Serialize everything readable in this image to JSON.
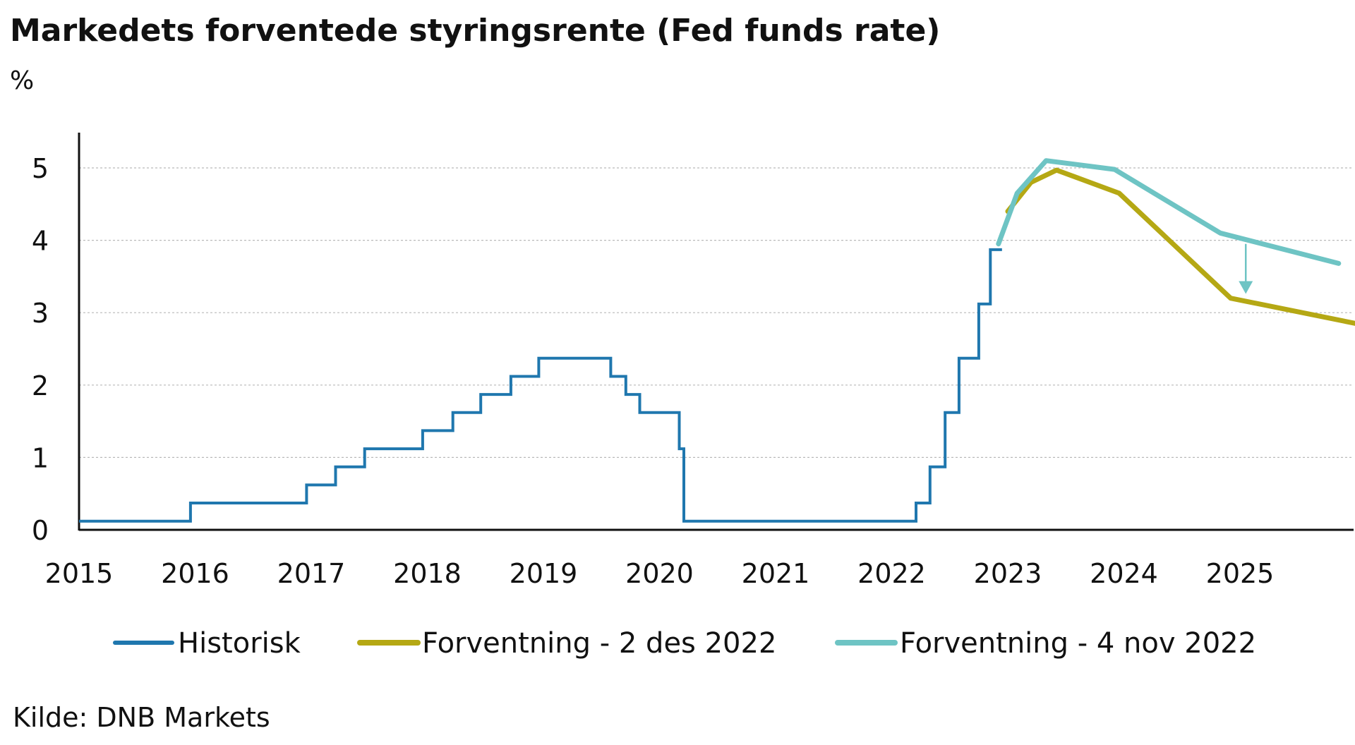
{
  "title": "Markedets forventede styringsrente (Fed funds rate)",
  "unit_label": "%",
  "source": "Kilde: DNB Markets",
  "colors": {
    "historisk": "#1f77ae",
    "forventning_des": "#b5a814",
    "forventning_nov": "#6ec4c4",
    "arrow": "#6ec4c4",
    "grid": "#b9b9b9",
    "axis": "#111111"
  },
  "chart_data": {
    "type": "line",
    "title": "Markedets forventede styringsrente (Fed funds rate)",
    "xlabel": "",
    "ylabel": "%",
    "xlim": [
      2015,
      2026
    ],
    "ylim": [
      0,
      5.5
    ],
    "grid": "horizontal dashed",
    "legend_position": "bottom",
    "x_ticks": [
      "2015",
      "2016",
      "2017",
      "2018",
      "2019",
      "2020",
      "2021",
      "2022",
      "2023",
      "2024",
      "2025"
    ],
    "y_ticks": [
      "0",
      "1",
      "2",
      "3",
      "4",
      "5"
    ],
    "series": [
      {
        "name": "Historisk",
        "style": "step",
        "points": [
          [
            2015.0,
            0.12
          ],
          [
            2015.96,
            0.12
          ],
          [
            2015.96,
            0.37
          ],
          [
            2016.96,
            0.37
          ],
          [
            2016.96,
            0.62
          ],
          [
            2017.21,
            0.62
          ],
          [
            2017.21,
            0.87
          ],
          [
            2017.46,
            0.87
          ],
          [
            2017.46,
            1.12
          ],
          [
            2017.96,
            1.12
          ],
          [
            2017.96,
            1.37
          ],
          [
            2018.22,
            1.37
          ],
          [
            2018.22,
            1.62
          ],
          [
            2018.46,
            1.62
          ],
          [
            2018.46,
            1.87
          ],
          [
            2018.72,
            1.87
          ],
          [
            2018.72,
            2.12
          ],
          [
            2018.96,
            2.12
          ],
          [
            2018.96,
            2.37
          ],
          [
            2019.58,
            2.37
          ],
          [
            2019.58,
            2.12
          ],
          [
            2019.71,
            2.12
          ],
          [
            2019.71,
            1.87
          ],
          [
            2019.83,
            1.87
          ],
          [
            2019.83,
            1.62
          ],
          [
            2020.17,
            1.62
          ],
          [
            2020.17,
            1.12
          ],
          [
            2020.21,
            1.12
          ],
          [
            2020.21,
            0.12
          ],
          [
            2022.21,
            0.12
          ],
          [
            2022.21,
            0.37
          ],
          [
            2022.33,
            0.37
          ],
          [
            2022.33,
            0.87
          ],
          [
            2022.46,
            0.87
          ],
          [
            2022.46,
            1.62
          ],
          [
            2022.58,
            1.62
          ],
          [
            2022.58,
            2.37
          ],
          [
            2022.75,
            2.37
          ],
          [
            2022.75,
            3.12
          ],
          [
            2022.85,
            3.12
          ],
          [
            2022.85,
            3.87
          ],
          [
            2022.95,
            3.87
          ]
        ]
      },
      {
        "name": "Forventning - 2 des 2022",
        "style": "line",
        "points": [
          [
            2023.0,
            4.4
          ],
          [
            2023.2,
            4.8
          ],
          [
            2023.42,
            4.97
          ],
          [
            2023.96,
            4.65
          ],
          [
            2024.92,
            3.2
          ],
          [
            2026.0,
            2.85
          ]
        ]
      },
      {
        "name": "Forventning - 4 nov 2022",
        "style": "line",
        "points": [
          [
            2022.92,
            3.95
          ],
          [
            2023.08,
            4.65
          ],
          [
            2023.33,
            5.1
          ],
          [
            2023.92,
            4.98
          ],
          [
            2024.83,
            4.1
          ],
          [
            2025.85,
            3.68
          ]
        ]
      }
    ],
    "annotations": [
      {
        "type": "arrow",
        "x": 2025.05,
        "from_y": 3.95,
        "to_y": 3.28
      }
    ]
  }
}
